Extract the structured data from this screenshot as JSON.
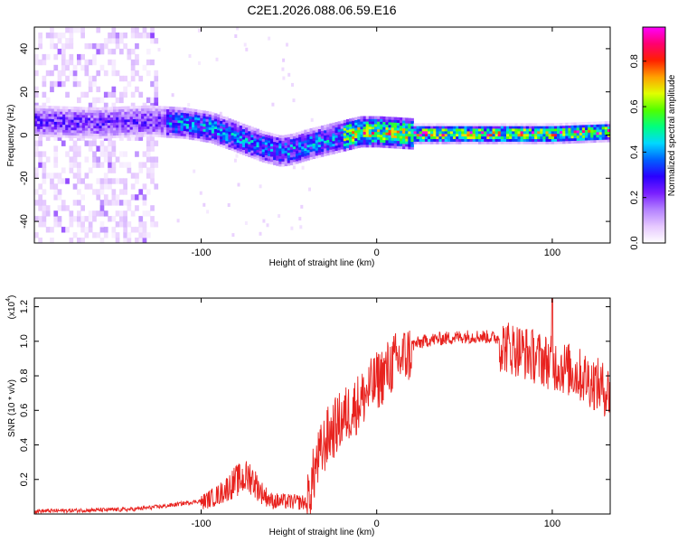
{
  "title": "C2E1.2026.088.06.59.E16",
  "chart_data": [
    {
      "type": "heatmap",
      "name": "spectrogram",
      "xlabel": "Height of straight line (km)",
      "ylabel": "Frequency (Hz)",
      "xlim": [
        -195,
        133
      ],
      "ylim": [
        -50,
        50
      ],
      "xticks": [
        -100,
        0,
        100
      ],
      "yticks": [
        -40,
        -20,
        0,
        20,
        40
      ],
      "colorbar": {
        "label": "Normalized spectral amplitude",
        "range": [
          0,
          0.95
        ],
        "ticks": [
          0.0,
          0.2,
          0.4,
          0.6,
          0.8
        ],
        "colors": [
          "#ffffff",
          "#e6c8ff",
          "#b482ff",
          "#7a1fff",
          "#2a00ff",
          "#0060ff",
          "#00d8ff",
          "#00ff80",
          "#50ff00",
          "#e0ff00",
          "#ffa000",
          "#ff2000",
          "#ff0070",
          "#ff00ff"
        ]
      },
      "band_center": [
        [
          -195,
          6
        ],
        [
          -160,
          5
        ],
        [
          -130,
          6
        ],
        [
          -110,
          5
        ],
        [
          -95,
          3
        ],
        [
          -85,
          0
        ],
        [
          -75,
          -3
        ],
        [
          -65,
          -6
        ],
        [
          -55,
          -8
        ],
        [
          -48,
          -7
        ],
        [
          -40,
          -5
        ],
        [
          -30,
          -3
        ],
        [
          -20,
          -1
        ],
        [
          -10,
          1
        ],
        [
          0,
          1
        ],
        [
          20,
          0
        ],
        [
          60,
          0
        ],
        [
          100,
          0
        ],
        [
          133,
          1
        ]
      ],
      "noise_region_x": [
        -195,
        -125
      ]
    },
    {
      "type": "line",
      "name": "snr",
      "xlabel": "Height of straight line (km)",
      "ylabel": "SNR (10 * v/v)",
      "scale_note": "(x10",
      "scale_exponent": "4",
      "xlim": [
        -195,
        133
      ],
      "ylim": [
        0,
        1.25
      ],
      "xticks": [
        -100,
        0,
        100
      ],
      "yticks": [
        0.2,
        0.4,
        0.6,
        0.8,
        1.0,
        1.2
      ],
      "ytick_labels": [
        "0.2",
        "0.4",
        "0.6",
        "0.8",
        "1.0",
        "1.2"
      ],
      "color": "#e8221e",
      "envelope": [
        [
          -195,
          0.02
        ],
        [
          -140,
          0.03
        ],
        [
          -120,
          0.05
        ],
        [
          -100,
          0.08
        ],
        [
          -90,
          0.13
        ],
        [
          -80,
          0.22
        ],
        [
          -72,
          0.25
        ],
        [
          -66,
          0.15
        ],
        [
          -60,
          0.09
        ],
        [
          -40,
          0.08
        ],
        [
          -35,
          0.32
        ],
        [
          -28,
          0.5
        ],
        [
          -20,
          0.6
        ],
        [
          -10,
          0.7
        ],
        [
          0,
          0.82
        ],
        [
          10,
          0.93
        ],
        [
          20,
          0.99
        ],
        [
          30,
          1.02
        ],
        [
          40,
          1.03
        ],
        [
          50,
          1.04
        ],
        [
          60,
          1.04
        ],
        [
          70,
          1.03
        ],
        [
          80,
          1.0
        ],
        [
          90,
          0.96
        ],
        [
          100,
          0.92
        ],
        [
          110,
          0.88
        ],
        [
          120,
          0.83
        ],
        [
          133,
          0.75
        ]
      ],
      "peak": {
        "x": 100,
        "y": 1.25
      }
    }
  ]
}
